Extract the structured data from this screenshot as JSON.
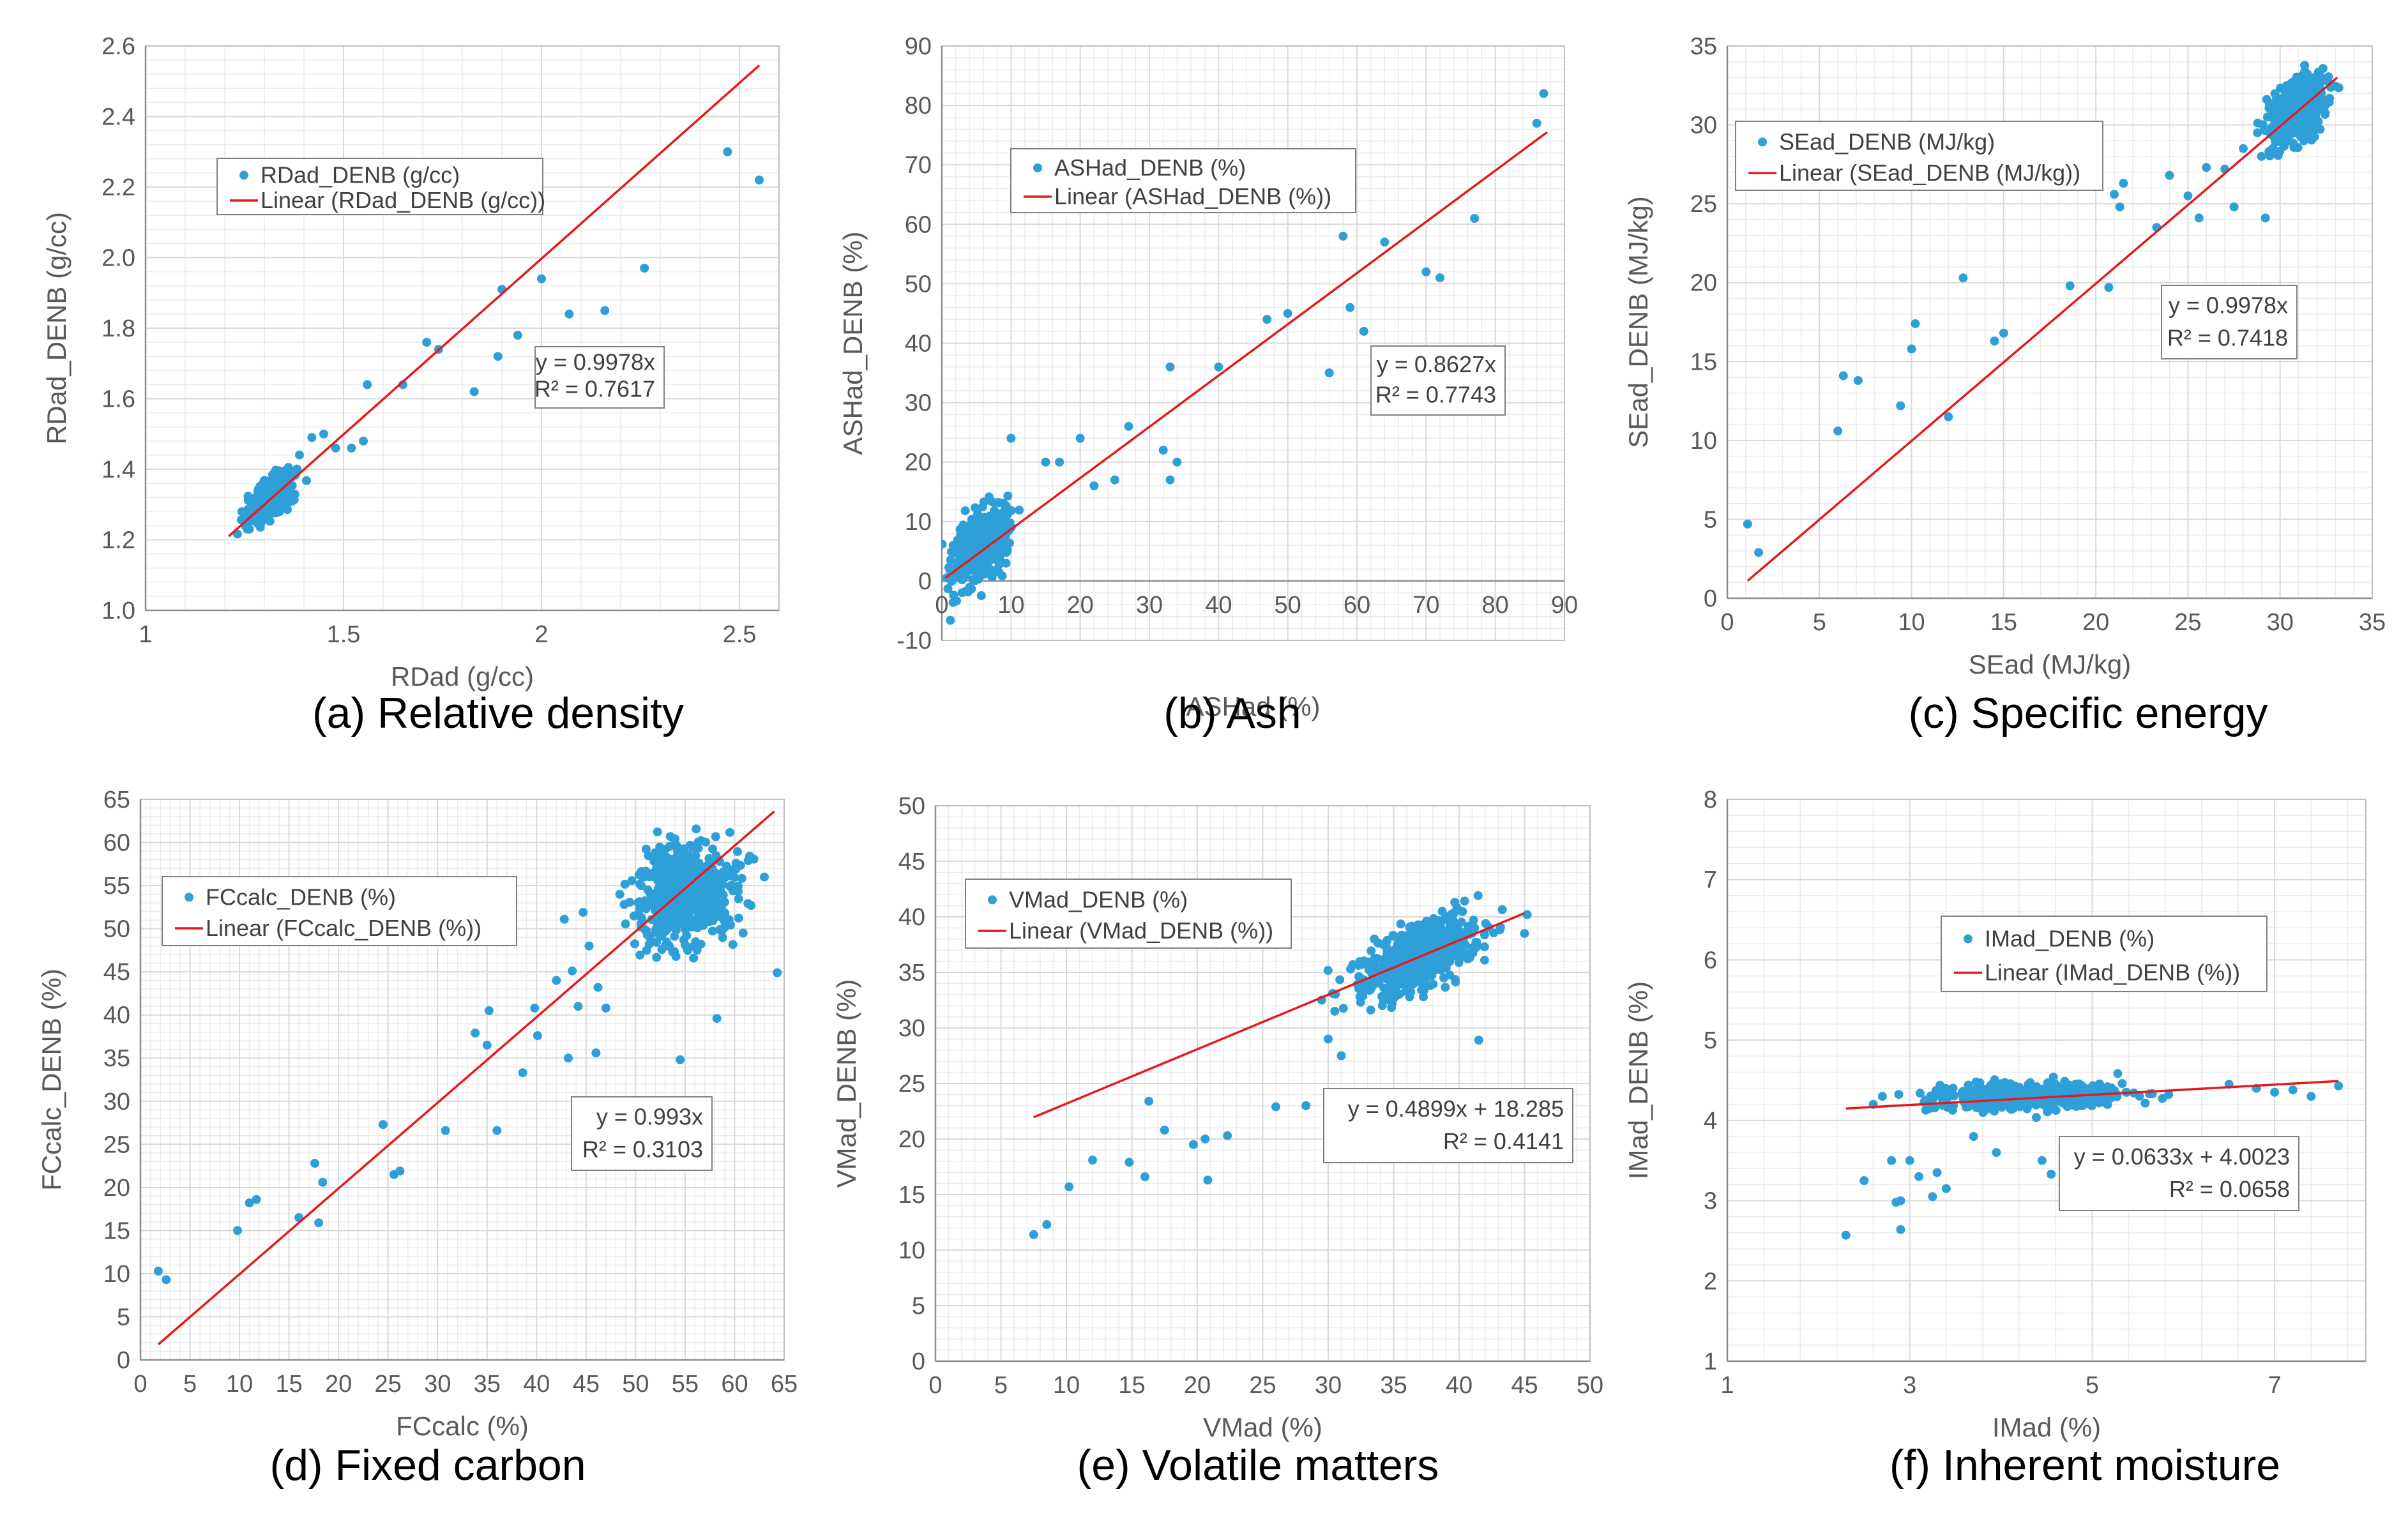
{
  "colors": {
    "points": "#2f9fd8",
    "trend": "#e41a1c",
    "grid": "#d9d9d9",
    "axis": "#8c8c8c"
  },
  "chart_data": [
    {
      "type": "scatter",
      "caption": "(a) Relative density",
      "xlabel": "RDad (g/cc)",
      "ylabel": "RDad_DENB (g/cc)",
      "xlim": [
        1,
        2.6
      ],
      "ylim": [
        1.0,
        2.6
      ],
      "xticks": [
        1,
        1.5,
        2,
        2.5
      ],
      "xtick_labels": [
        "1",
        "1.5",
        "2",
        "2.5"
      ],
      "yticks": [
        1.0,
        1.2,
        1.4,
        1.6,
        1.8,
        2.0,
        2.2,
        2.4,
        2.6
      ],
      "ytick_labels": [
        "1.0",
        "1.2",
        "1.4",
        "1.6",
        "1.8",
        "2.0",
        "2.2",
        "2.4",
        "2.6"
      ],
      "legend": {
        "series": "RDad_DENB (g/cc)",
        "trend": "Linear (RDad_DENB (g/cc))"
      },
      "equation": [
        "y = 0.9978x",
        "R² = 0.7617"
      ],
      "trend_line": [
        [
          1.21,
          1.21
        ],
        [
          2.55,
          2.545
        ]
      ],
      "cluster": {
        "n": 420,
        "xc": 1.32,
        "yc": 1.32,
        "sx": 0.05,
        "sy": 0.045,
        "slope": 0.8
      },
      "points": [
        [
          1.55,
          1.48
        ],
        [
          1.52,
          1.46
        ],
        [
          1.56,
          1.64
        ],
        [
          1.65,
          1.64
        ],
        [
          1.71,
          1.76
        ],
        [
          1.74,
          1.74
        ],
        [
          1.83,
          1.62
        ],
        [
          1.89,
          1.72
        ],
        [
          1.9,
          1.91
        ],
        [
          1.94,
          1.78
        ],
        [
          2.0,
          1.94
        ],
        [
          2.07,
          1.84
        ],
        [
          2.16,
          1.85
        ],
        [
          2.26,
          1.97
        ],
        [
          2.47,
          2.3
        ],
        [
          2.55,
          2.22
        ],
        [
          1.48,
          1.46
        ],
        [
          1.45,
          1.5
        ],
        [
          1.42,
          1.49
        ]
      ]
    },
    {
      "type": "scatter",
      "caption": "(b) Ash",
      "xlabel": "ASHad (%)",
      "ylabel": "ASHad_DENB (%)",
      "xlim": [
        0,
        90
      ],
      "ylim": [
        -10,
        90
      ],
      "xticks": [
        0,
        10,
        20,
        30,
        40,
        50,
        60,
        70,
        80,
        90
      ],
      "xtick_labels": [
        "0",
        "10",
        "20",
        "30",
        "40",
        "50",
        "60",
        "70",
        "80",
        "90"
      ],
      "yticks": [
        -10,
        0,
        10,
        20,
        30,
        40,
        50,
        60,
        70,
        80,
        90
      ],
      "ytick_labels": [
        "-10",
        "0",
        "10",
        "20",
        "30",
        "40",
        "50",
        "60",
        "70",
        "80",
        "90"
      ],
      "legend": {
        "series": "ASHad_DENB (%)",
        "trend": "Linear (ASHad_DENB (%))"
      },
      "equation": [
        "y = 0.8627x",
        "R² = 0.7743"
      ],
      "trend_line": [
        [
          0.5,
          0.5
        ],
        [
          87.5,
          75.5
        ]
      ],
      "cluster": {
        "n": 520,
        "xc": 5.5,
        "yc": 5.5,
        "sx": 3.5,
        "sy": 4.5,
        "slope": 0.75
      },
      "points": [
        [
          17,
          20
        ],
        [
          20,
          24
        ],
        [
          22,
          16
        ],
        [
          25,
          17
        ],
        [
          27,
          26
        ],
        [
          32,
          22
        ],
        [
          33,
          17
        ],
        [
          33,
          36
        ],
        [
          34,
          20
        ],
        [
          40,
          36
        ],
        [
          47,
          44
        ],
        [
          50,
          45
        ],
        [
          56,
          35
        ],
        [
          58,
          58
        ],
        [
          59,
          46
        ],
        [
          61,
          42
        ],
        [
          64,
          57
        ],
        [
          70,
          52
        ],
        [
          72,
          51
        ],
        [
          77,
          61
        ],
        [
          86,
          77
        ],
        [
          87,
          82
        ],
        [
          10,
          24
        ],
        [
          15,
          20
        ]
      ]
    },
    {
      "type": "scatter",
      "caption": "(c) Specific energy",
      "xlabel": "SEad (MJ/kg)",
      "ylabel": "SEad_DENB (MJ/kg)",
      "xlim": [
        0,
        35
      ],
      "ylim": [
        0,
        35
      ],
      "xticks": [
        0,
        5,
        10,
        15,
        20,
        25,
        30,
        35
      ],
      "xtick_labels": [
        "0",
        "5",
        "10",
        "15",
        "20",
        "25",
        "30",
        "35"
      ],
      "yticks": [
        0,
        5,
        10,
        15,
        20,
        25,
        30,
        35
      ],
      "ytick_labels": [
        "0",
        "5",
        "10",
        "15",
        "20",
        "25",
        "30",
        "35"
      ],
      "legend": {
        "series": "SEad_DENB (MJ/kg)",
        "trend": "Linear (SEad_DENB (MJ/kg))"
      },
      "equation": [
        "y = 0.9978x",
        "R² = 0.7418"
      ],
      "trend_line": [
        [
          1.1,
          1.1
        ],
        [
          33.1,
          33.0
        ]
      ],
      "cluster": {
        "n": 480,
        "xc": 31.0,
        "yc": 31.0,
        "sx": 1.3,
        "sy": 1.6,
        "slope": 0.6
      },
      "points": [
        [
          1.1,
          4.7
        ],
        [
          1.7,
          2.9
        ],
        [
          6.0,
          10.6
        ],
        [
          6.3,
          14.1
        ],
        [
          7.1,
          13.8
        ],
        [
          9.4,
          12.2
        ],
        [
          10.0,
          15.8
        ],
        [
          10.2,
          17.4
        ],
        [
          12.0,
          11.5
        ],
        [
          12.8,
          20.3
        ],
        [
          14.5,
          16.3
        ],
        [
          15.0,
          16.8
        ],
        [
          18.6,
          19.8
        ],
        [
          20.7,
          19.7
        ],
        [
          21.0,
          25.6
        ],
        [
          21.3,
          24.8
        ],
        [
          21.5,
          26.3
        ],
        [
          23.3,
          23.5
        ],
        [
          24.0,
          26.8
        ],
        [
          25.0,
          25.5
        ],
        [
          25.6,
          24.1
        ],
        [
          26.0,
          27.3
        ],
        [
          27.0,
          27.2
        ],
        [
          27.5,
          24.8
        ],
        [
          29.2,
          24.1
        ],
        [
          28.0,
          28.5
        ]
      ]
    },
    {
      "type": "scatter",
      "caption": "(d) Fixed carbon",
      "xlabel": "FCcalc (%)",
      "ylabel": "FCcalc_DENB (%)",
      "xlim": [
        0,
        65
      ],
      "ylim": [
        0,
        65
      ],
      "xticks": [
        0,
        5,
        10,
        15,
        20,
        25,
        30,
        35,
        40,
        45,
        50,
        55,
        60,
        65
      ],
      "xtick_labels": [
        "0",
        "5",
        "10",
        "15",
        "20",
        "25",
        "30",
        "35",
        "40",
        "45",
        "50",
        "55",
        "60",
        "65"
      ],
      "yticks": [
        0,
        5,
        10,
        15,
        20,
        25,
        30,
        35,
        40,
        45,
        50,
        55,
        60,
        65
      ],
      "ytick_labels": [
        "0",
        "5",
        "10",
        "15",
        "20",
        "25",
        "30",
        "35",
        "40",
        "45",
        "50",
        "55",
        "60",
        "65"
      ],
      "legend": {
        "series": "FCcalc_DENB (%)",
        "trend": "Linear (FCcalc_DENB (%))"
      },
      "equation": [
        "y = 0.993x",
        "R² = 0.3103"
      ],
      "trend_line": [
        [
          1.8,
          1.8
        ],
        [
          64,
          63.6
        ]
      ],
      "cluster": {
        "n": 560,
        "xc": 55.0,
        "yc": 54.0,
        "sx": 4.0,
        "sy": 5.0,
        "slope": 0.2
      },
      "points": [
        [
          1.8,
          10.3
        ],
        [
          2.6,
          9.3
        ],
        [
          9.8,
          15.0
        ],
        [
          11.0,
          18.2
        ],
        [
          11.7,
          18.6
        ],
        [
          16.0,
          16.5
        ],
        [
          17.6,
          22.8
        ],
        [
          18.0,
          15.9
        ],
        [
          18.4,
          20.6
        ],
        [
          24.5,
          27.3
        ],
        [
          25.6,
          21.5
        ],
        [
          26.2,
          21.9
        ],
        [
          30.8,
          26.6
        ],
        [
          33.8,
          37.9
        ],
        [
          35.0,
          36.5
        ],
        [
          35.2,
          40.5
        ],
        [
          36.0,
          26.6
        ],
        [
          38.6,
          33.3
        ],
        [
          39.8,
          40.8
        ],
        [
          40.1,
          37.6
        ],
        [
          42.0,
          44.0
        ],
        [
          42.8,
          51.1
        ],
        [
          43.2,
          35.0
        ],
        [
          43.6,
          45.1
        ],
        [
          44.2,
          41.0
        ],
        [
          44.7,
          51.9
        ],
        [
          45.3,
          48.0
        ],
        [
          46.0,
          35.6
        ],
        [
          46.2,
          43.2
        ],
        [
          47.0,
          40.8
        ],
        [
          64.3,
          44.9
        ],
        [
          63.0,
          56.0
        ],
        [
          54.5,
          34.8
        ],
        [
          58.2,
          39.6
        ]
      ]
    },
    {
      "type": "scatter",
      "caption": "(e) Volatile matters",
      "xlabel": "VMad (%)",
      "ylabel": "VMad_DENB (%)",
      "xlim": [
        0,
        50
      ],
      "ylim": [
        0,
        50
      ],
      "xticks": [
        0,
        5,
        10,
        15,
        20,
        25,
        30,
        35,
        40,
        45,
        50
      ],
      "xtick_labels": [
        "0",
        "5",
        "10",
        "15",
        "20",
        "25",
        "30",
        "35",
        "40",
        "45",
        "50"
      ],
      "yticks": [
        0,
        5,
        10,
        15,
        20,
        25,
        30,
        35,
        40,
        45,
        50
      ],
      "ytick_labels": [
        "0",
        "5",
        "10",
        "15",
        "20",
        "25",
        "30",
        "35",
        "40",
        "45",
        "50"
      ],
      "legend": {
        "series": "VMad_DENB (%)",
        "trend": "Linear (VMad_DENB (%))"
      },
      "equation": [
        "y = 0.4899x + 18.285",
        "R² = 0.4141"
      ],
      "trend_line": [
        [
          7.5,
          21.96
        ],
        [
          45,
          40.33
        ]
      ],
      "cluster": {
        "n": 560,
        "xc": 37.0,
        "yc": 36.5,
        "sx": 4.0,
        "sy": 2.5,
        "slope": 0.45
      },
      "points": [
        [
          7.5,
          11.4
        ],
        [
          8.5,
          12.3
        ],
        [
          10.2,
          15.7
        ],
        [
          12.0,
          18.1
        ],
        [
          14.8,
          17.9
        ],
        [
          16.0,
          16.6
        ],
        [
          16.3,
          23.4
        ],
        [
          17.5,
          20.8
        ],
        [
          19.7,
          19.5
        ],
        [
          20.6,
          20.0
        ],
        [
          20.8,
          16.3
        ],
        [
          22.3,
          20.3
        ],
        [
          26.0,
          22.9
        ],
        [
          28.3,
          23.0
        ],
        [
          30.0,
          29.0
        ],
        [
          31.0,
          27.5
        ],
        [
          29.5,
          32.5
        ],
        [
          30.5,
          31.5
        ],
        [
          41.5,
          28.9
        ],
        [
          45.0,
          38.5
        ],
        [
          45.2,
          40.2
        ]
      ]
    },
    {
      "type": "scatter",
      "caption": "(f) Inherent moisture",
      "xlabel": "IMad (%)",
      "ylabel": "IMad_DENB (%)",
      "xlim": [
        1,
        8
      ],
      "ylim": [
        1,
        8
      ],
      "xticks": [
        1,
        3,
        5,
        7
      ],
      "xtick_labels": [
        "1",
        "3",
        "5",
        "7"
      ],
      "yticks": [
        1,
        2,
        3,
        4,
        5,
        6,
        7,
        8
      ],
      "ytick_labels": [
        "1",
        "2",
        "3",
        "4",
        "5",
        "6",
        "7",
        "8"
      ],
      "legend": {
        "series": "IMad_DENB (%)",
        "trend": "Linear (IMad_DENB (%))"
      },
      "equation": [
        "y = 0.0633x + 4.0023",
        "R² = 0.0658"
      ],
      "trend_line": [
        [
          2.3,
          4.148
        ],
        [
          7.7,
          4.49
        ]
      ],
      "cluster": {
        "n": 520,
        "xc": 4.3,
        "yc": 4.3,
        "sx": 0.9,
        "sy": 0.13,
        "slope": 0.03
      },
      "points": [
        [
          2.3,
          2.57
        ],
        [
          2.5,
          3.25
        ],
        [
          2.8,
          3.5
        ],
        [
          2.85,
          2.98
        ],
        [
          2.9,
          2.64
        ],
        [
          2.9,
          3.0
        ],
        [
          3.0,
          3.5
        ],
        [
          3.1,
          3.3
        ],
        [
          3.25,
          3.05
        ],
        [
          3.3,
          3.35
        ],
        [
          3.4,
          3.15
        ],
        [
          3.7,
          3.8
        ],
        [
          3.95,
          3.6
        ],
        [
          4.45,
          3.5
        ],
        [
          4.55,
          3.33
        ],
        [
          2.6,
          4.2
        ],
        [
          2.7,
          4.3
        ],
        [
          6.8,
          4.4
        ],
        [
          7.0,
          4.35
        ],
        [
          7.2,
          4.38
        ],
        [
          7.4,
          4.3
        ],
        [
          7.7,
          4.43
        ],
        [
          6.5,
          4.45
        ]
      ]
    }
  ]
}
